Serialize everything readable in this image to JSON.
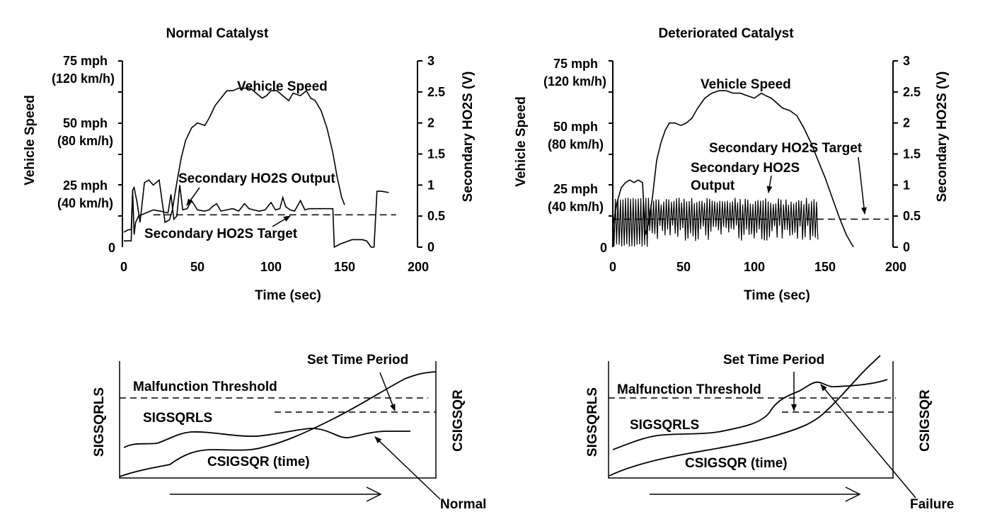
{
  "chart_data": [
    {
      "type": "line",
      "title": "Normal Catalyst",
      "xlabel": "Time (sec)",
      "ylabel_left": "Vehicle Speed",
      "ylabel_right": "Secondary HO2S (V)",
      "x_ticks": [
        "0",
        "50",
        "100",
        "150",
        "200"
      ],
      "left_ticks": [
        {
          "line1": "75 mph",
          "line2": "(120 km/h)"
        },
        {
          "line1": "50 mph",
          "line2": "(80 km/h)"
        },
        {
          "line1": "25 mph",
          "line2": "(40 km/h)"
        },
        {
          "line1": "0",
          "line2": ""
        }
      ],
      "right_ticks": [
        "3",
        "2.5",
        "2",
        "1.5",
        "1",
        "0.5",
        "0"
      ],
      "annotations": {
        "speed": "Vehicle Speed",
        "output": "Secondary HO2S Output",
        "target": "Secondary HO2S Target"
      },
      "series": [
        {
          "name": "Vehicle Speed",
          "unit": "mph",
          "x": [
            0,
            3,
            5,
            6,
            7,
            9,
            11,
            14,
            17,
            20,
            24,
            28,
            31,
            33,
            36,
            39,
            42,
            46,
            50,
            55,
            58,
            62,
            66,
            70,
            74,
            78,
            82,
            86,
            90,
            94,
            97,
            100,
            104,
            108,
            112,
            115,
            120,
            124,
            127,
            130,
            134,
            138,
            142,
            145,
            148,
            150
          ],
          "y": [
            6,
            7,
            7,
            23,
            24,
            18,
            10,
            26,
            27,
            25,
            27,
            10,
            11,
            15,
            26,
            36,
            43,
            48,
            50,
            49,
            52,
            57,
            60,
            63,
            63,
            64,
            64,
            64,
            62,
            60,
            61,
            63,
            63,
            61,
            59,
            62,
            61,
            63,
            60,
            59,
            55,
            48,
            38,
            28,
            20,
            17
          ]
        },
        {
          "name": "Secondary HO2S Output",
          "unit": "V",
          "x": [
            0,
            4,
            5,
            6,
            7,
            8,
            10,
            15,
            20,
            25,
            30,
            32,
            34,
            36,
            38,
            40,
            43,
            46,
            50,
            55,
            58,
            60,
            63,
            66,
            70,
            74,
            78,
            82,
            85,
            88,
            92,
            96,
            100,
            103,
            106,
            108,
            110,
            113,
            116,
            120,
            123,
            126,
            130,
            134,
            138,
            142,
            143,
            147,
            155,
            162,
            165,
            168,
            170,
            172,
            175,
            180
          ],
          "y": [
            0.1,
            0.1,
            0.1,
            0.9,
            0.2,
            0.4,
            0.5,
            0.55,
            0.6,
            0.58,
            0.55,
            0.85,
            0.45,
            0.5,
            1.0,
            0.6,
            0.62,
            0.75,
            0.6,
            0.58,
            0.6,
            0.65,
            0.7,
            0.58,
            0.6,
            0.62,
            0.58,
            0.7,
            0.62,
            0.6,
            0.58,
            0.6,
            0.72,
            0.6,
            0.62,
            0.8,
            0.65,
            0.6,
            0.58,
            0.75,
            0.6,
            0.62,
            0.62,
            0.62,
            0.62,
            0.62,
            0.0,
            0.05,
            0.12,
            0.12,
            0.1,
            0.0,
            0.0,
            0.9,
            0.9,
            0.88
          ]
        },
        {
          "name": "Secondary HO2S Target",
          "unit": "V",
          "x": [
            20,
            185
          ],
          "y": [
            0.52,
            0.52
          ]
        }
      ]
    },
    {
      "type": "line",
      "title": "Deteriorated Catalyst",
      "xlabel": "Time (sec)",
      "ylabel_left": "Vehicle Speed",
      "ylabel_right": "Secondary HO2S (V)",
      "x_ticks": [
        "0",
        "50",
        "100",
        "150",
        "200"
      ],
      "left_ticks": [
        {
          "line1": "75 mph",
          "line2": "(120 km/h)"
        },
        {
          "line1": "50 mph",
          "line2": "(80 km/h)"
        },
        {
          "line1": "25 mph",
          "line2": "(40 km/h)"
        },
        {
          "line1": "0",
          "line2": ""
        }
      ],
      "right_ticks": [
        "3",
        "2.5",
        "2",
        "1.5",
        "1",
        "0.5",
        "0"
      ],
      "annotations": {
        "speed": "Vehicle Speed",
        "output_line1": "Secondary HO2S",
        "output_line2": "Output",
        "target": "Secondary HO2S Target"
      },
      "series": [
        {
          "name": "Vehicle Speed",
          "unit": "mph",
          "x": [
            0,
            3,
            6,
            9,
            12,
            15,
            18,
            21,
            23,
            25,
            28,
            31,
            34,
            37,
            40,
            44,
            48,
            52,
            56,
            60,
            65,
            70,
            75,
            80,
            85,
            90,
            95,
            100,
            105,
            108,
            112,
            116,
            120,
            125,
            130,
            135,
            140,
            145,
            150,
            155,
            160,
            165,
            170
          ],
          "y": [
            8,
            18,
            24,
            26,
            27,
            26,
            27,
            26,
            5,
            9,
            20,
            35,
            42,
            47,
            50,
            50,
            49,
            50,
            52,
            56,
            60,
            62,
            63,
            63,
            62,
            62,
            61,
            60,
            62,
            61,
            60,
            58,
            56,
            55,
            53,
            48,
            42,
            35,
            28,
            20,
            12,
            5,
            0
          ]
        },
        {
          "name": "Secondary HO2S Output",
          "unit": "V",
          "x_range": [
            0,
            145
          ],
          "y_range": [
            0.0,
            0.8
          ]
        },
        {
          "name": "Secondary HO2S Target",
          "unit": "V",
          "x": [
            0,
            195
          ],
          "y": [
            0.45,
            0.45
          ]
        }
      ]
    },
    {
      "type": "line",
      "left_label": "SIGSQRLS",
      "right_label": "CSIGSQR",
      "labels": {
        "set_time": "Set Time Period",
        "threshold": "Malfunction Threshold",
        "sigsqrls": "SIGSQRLS",
        "csigsqr": "CSIGSQR (time)",
        "result": "Normal"
      },
      "series": [
        {
          "name": "SIGSQRLS",
          "x": [
            0,
            1,
            2,
            3,
            4,
            5,
            6,
            7,
            8,
            9,
            10
          ],
          "y": [
            0.25,
            0.32,
            0.38,
            0.34,
            0.34,
            0.38,
            0.4,
            0.42,
            0.38,
            0.38,
            0.38
          ]
        },
        {
          "name": "CSIGSQR (time)",
          "x": [
            0,
            1,
            2,
            3,
            4,
            5,
            6,
            7,
            8,
            9,
            10
          ],
          "y": [
            0.0,
            0.12,
            0.22,
            0.26,
            0.3,
            0.42,
            0.55,
            0.7,
            0.82,
            0.88,
            0.9
          ]
        }
      ]
    },
    {
      "type": "line",
      "left_label": "SIGSQRLS",
      "right_label": "CSIGSQR",
      "labels": {
        "set_time": "Set Time Period",
        "threshold": "Malfunction Threshold",
        "sigsqrls": "SIGSQRLS",
        "csigsqr": "CSIGSQR (time)",
        "result": "Failure"
      },
      "series": [
        {
          "name": "SIGSQRLS",
          "x": [
            0,
            1,
            2,
            3,
            4,
            5,
            6,
            7,
            8,
            9,
            10
          ],
          "y": [
            0.3,
            0.38,
            0.42,
            0.44,
            0.48,
            0.62,
            0.72,
            0.78,
            0.74,
            0.76,
            0.78
          ]
        },
        {
          "name": "CSIGSQR (time)",
          "x": [
            0,
            1,
            2,
            3,
            4,
            5,
            6,
            7,
            8,
            9,
            10
          ],
          "y": [
            0.0,
            0.12,
            0.2,
            0.26,
            0.32,
            0.42,
            0.5,
            0.58,
            0.7,
            0.85,
            0.98
          ]
        }
      ]
    }
  ]
}
